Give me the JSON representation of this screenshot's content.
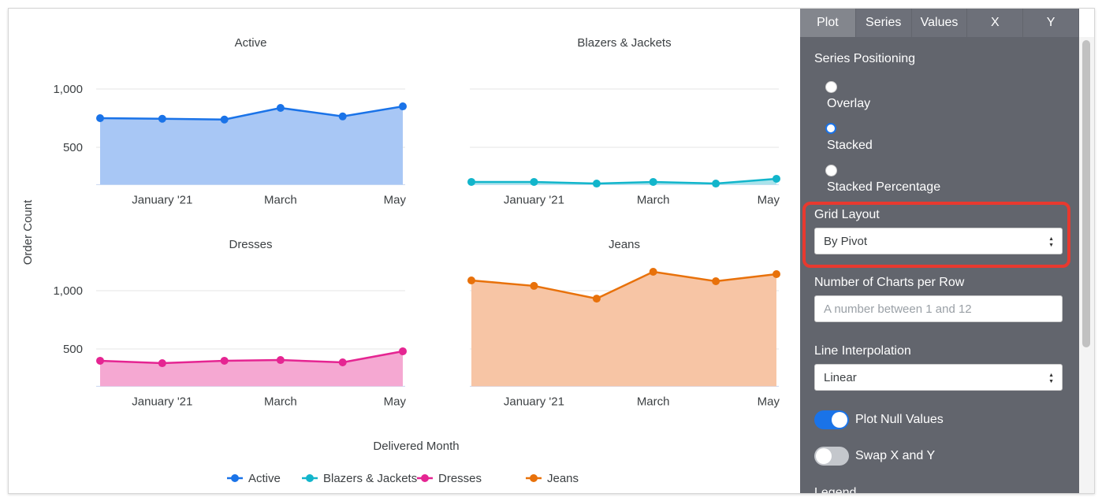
{
  "chart_data": {
    "type": "area",
    "layout": "grid 2x2 by pivot",
    "ylabel": "Order Count",
    "xlabel": "Delivered Month",
    "x": [
      "2020-12",
      "2021-01",
      "2021-02",
      "2021-03",
      "2021-04",
      "2021-05"
    ],
    "x_ticks": [
      {
        "x": "2021-01",
        "label": "January '21"
      },
      {
        "x": "2021-03",
        "label": "March"
      },
      {
        "x": "2021-05",
        "label": "May"
      }
    ],
    "y_ticks": [
      {
        "v": 1000,
        "label": "1,000"
      },
      {
        "v": 500,
        "label": "500"
      }
    ],
    "ylim": [
      180,
      1200
    ],
    "grid": true,
    "legend_position": "bottom",
    "series": [
      {
        "name": "Active",
        "color": "#1a73e8",
        "fill": "#a8c7f5",
        "values": [
          750,
          745,
          738,
          838,
          765,
          851
        ]
      },
      {
        "name": "Blazers & Jackets",
        "color": "#12b5cb",
        "fill": "#a9e3eb",
        "values": [
          203,
          203,
          189,
          203,
          189,
          230
        ]
      },
      {
        "name": "Dresses",
        "color": "#e52592",
        "fill": "#f5a8d2",
        "values": [
          399,
          378,
          399,
          405,
          385,
          480
        ]
      },
      {
        "name": "Jeans",
        "color": "#e8710a",
        "fill": "#f7c5a5",
        "values": [
          1088,
          1041,
          932,
          1162,
          1081,
          1142
        ]
      }
    ]
  },
  "panel": {
    "tabs": [
      "Plot",
      "Series",
      "Values",
      "X",
      "Y"
    ],
    "active_tab": "Plot",
    "series_positioning": {
      "label": "Series Positioning",
      "options": [
        "Overlay",
        "Stacked",
        "Stacked Percentage"
      ],
      "selected": "Stacked"
    },
    "grid_layout": {
      "label": "Grid Layout",
      "value": "By Pivot"
    },
    "charts_per_row": {
      "label": "Number of Charts per Row",
      "placeholder": "A number between 1 and 12"
    },
    "line_interpolation": {
      "label": "Line Interpolation",
      "value": "Linear"
    },
    "plot_null_values": {
      "label": "Plot Null Values",
      "on": true
    },
    "swap_xy": {
      "label": "Swap X and Y",
      "on": false
    },
    "legend_label": "Legend",
    "accent": "#1a73e8",
    "highlight_color": "#e8392f"
  }
}
